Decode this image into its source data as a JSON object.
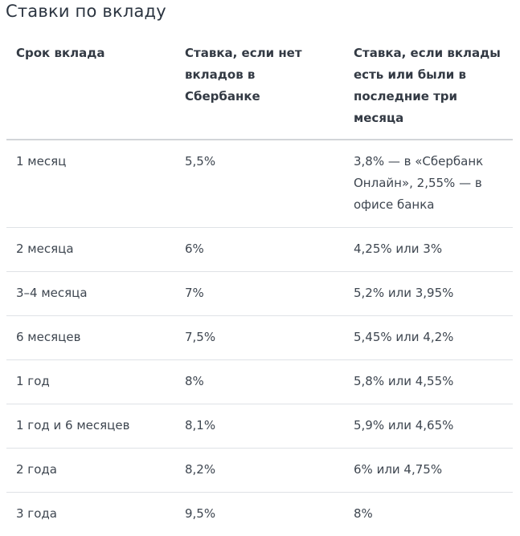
{
  "title": "Ставки по вкладу",
  "table": {
    "headers": [
      "Срок вклада",
      "Ставка, если нет вкладов в Сбербанке",
      "Ставка, если вклады есть или были в последние три месяца"
    ],
    "rows": [
      {
        "term": "1 месяц",
        "rate_no_deposits": "5,5%",
        "rate_with_deposits": "3,8% — в «Сбербанк Онлайн», 2,55% — в офисе банка"
      },
      {
        "term": "2 месяца",
        "rate_no_deposits": "6%",
        "rate_with_deposits": "4,25% или 3%"
      },
      {
        "term": "3–4 месяца",
        "rate_no_deposits": "7%",
        "rate_with_deposits": "5,2% или 3,95%"
      },
      {
        "term": "6 месяцев",
        "rate_no_deposits": "7,5%",
        "rate_with_deposits": "5,45% или 4,2%"
      },
      {
        "term": "1 год",
        "rate_no_deposits": "8%",
        "rate_with_deposits": "5,8% или 4,55%"
      },
      {
        "term": "1 год и 6 месяцев",
        "rate_no_deposits": "8,1%",
        "rate_with_deposits": "5,9% или 4,65%"
      },
      {
        "term": "2 года",
        "rate_no_deposits": "8,2%",
        "rate_with_deposits": "6% или 4,75%"
      },
      {
        "term": "3 года",
        "rate_no_deposits": "9,5%",
        "rate_with_deposits": "8%"
      }
    ]
  }
}
